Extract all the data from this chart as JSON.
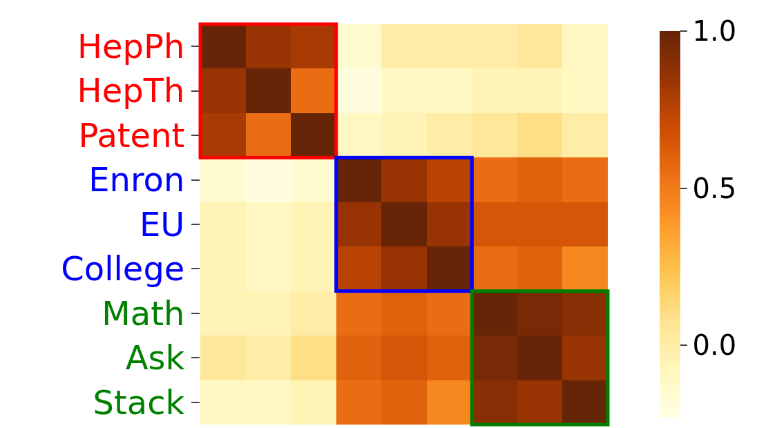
{
  "chart_data": {
    "type": "heatmap",
    "categories": [
      null,
      null,
      null,
      null,
      null,
      null,
      null,
      null,
      null
    ],
    "y_categories": [
      "HepPh",
      "HepTh",
      "Patent",
      "Enron",
      "EU",
      "College",
      "Math",
      "Ask",
      "Stack"
    ],
    "cells": [
      [
        1.0,
        0.85,
        0.8,
        -0.15,
        0.0,
        0.0,
        0.0,
        0.05,
        -0.1
      ],
      [
        0.85,
        1.0,
        0.55,
        -0.2,
        -0.1,
        -0.1,
        -0.05,
        -0.05,
        -0.1
      ],
      [
        0.8,
        0.55,
        1.0,
        -0.1,
        -0.05,
        0.0,
        0.05,
        0.1,
        0.0
      ],
      [
        -0.15,
        -0.2,
        -0.15,
        1.0,
        0.85,
        0.75,
        0.55,
        0.6,
        0.55
      ],
      [
        -0.05,
        -0.1,
        -0.05,
        0.85,
        1.0,
        0.85,
        0.65,
        0.65,
        0.65
      ],
      [
        -0.05,
        -0.1,
        -0.05,
        0.75,
        0.85,
        1.0,
        0.55,
        0.6,
        0.45
      ],
      [
        -0.05,
        -0.05,
        0.0,
        0.55,
        0.6,
        0.55,
        1.0,
        0.95,
        0.9
      ],
      [
        0.05,
        0.0,
        0.1,
        0.6,
        0.65,
        0.6,
        0.95,
        1.0,
        0.85
      ],
      [
        -0.1,
        -0.1,
        -0.05,
        0.55,
        0.6,
        0.45,
        0.9,
        0.85,
        1.0
      ]
    ],
    "clim": [
      -0.23,
      1.0
    ],
    "cticks": [
      {
        "value": 0.0,
        "label": "0.0"
      },
      {
        "value": 0.5,
        "label": "0.5"
      },
      {
        "value": 1.0,
        "label": "1.0"
      }
    ]
  }
}
